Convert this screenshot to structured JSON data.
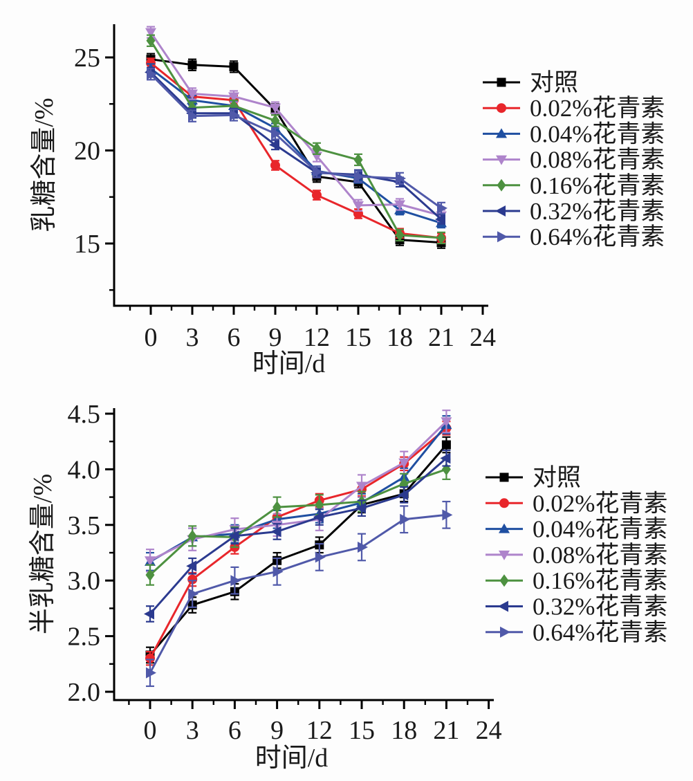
{
  "figure": {
    "panel_count": 2,
    "text_color": "#1a1a1a",
    "axis_color": "#000000"
  },
  "chart_data": [
    {
      "type": "line",
      "title": "",
      "xlabel": "时间/d",
      "ylabel": "乳糖含量/%",
      "x": [
        0,
        3,
        6,
        9,
        12,
        15,
        18,
        21
      ],
      "xlim": [
        -2.65,
        24.4
      ],
      "ylim": [
        11.7,
        26.8
      ],
      "xticks": [
        0,
        3,
        6,
        9,
        12,
        15,
        18,
        21,
        24
      ],
      "xtick_labels": [
        "0",
        "3",
        "6",
        "9",
        "12",
        "15",
        "18",
        "21",
        "24"
      ],
      "xminorticks": [
        -1.5,
        1.5,
        4.5,
        7.5,
        10.5,
        13.5,
        16.5,
        19.5,
        22.5
      ],
      "yticks": [
        15,
        20,
        25
      ],
      "ytick_labels": [
        "15",
        "20",
        "25"
      ],
      "yminorticks": [
        12.5,
        17.5,
        22.5
      ],
      "grid": false,
      "legend_position": "right",
      "series": [
        {
          "name": "对照",
          "marker": "square",
          "color": "#000000",
          "error": 0.3,
          "values": [
            24.9,
            24.6,
            24.5,
            22.2,
            18.6,
            18.3,
            15.2,
            15.05
          ]
        },
        {
          "name": "0.02%花青素",
          "marker": "circle",
          "color": "#e8262b",
          "error": 0.25,
          "values": [
            24.7,
            22.9,
            22.7,
            19.2,
            17.6,
            16.6,
            15.55,
            15.3
          ]
        },
        {
          "name": "0.04%花青素",
          "marker": "triangle-up",
          "color": "#1f4fa1",
          "error": 0.25,
          "values": [
            24.4,
            22.7,
            22.4,
            21.2,
            18.9,
            18.5,
            16.8,
            16.1
          ]
        },
        {
          "name": "0.08%花青素",
          "marker": "triangle-down",
          "color": "#ae84cb",
          "error": 0.3,
          "values": [
            26.35,
            23.05,
            22.9,
            22.3,
            19.7,
            17.05,
            17.1,
            16.5
          ]
        },
        {
          "name": "0.16%花青素",
          "marker": "diamond",
          "color": "#4d9140",
          "error": 0.3,
          "values": [
            25.9,
            22.3,
            22.4,
            21.6,
            20.1,
            19.5,
            15.45,
            15.3
          ]
        },
        {
          "name": "0.32%花青素",
          "marker": "triangle-left",
          "color": "#2b3a8f",
          "error": 0.25,
          "values": [
            24.2,
            22.0,
            22.0,
            20.3,
            18.8,
            18.7,
            18.3,
            16.3
          ]
        },
        {
          "name": "0.64%花青素",
          "marker": "triangle-right",
          "color": "#5059a9",
          "error": 0.3,
          "values": [
            24.1,
            21.85,
            21.9,
            20.9,
            18.85,
            18.6,
            18.5,
            16.9
          ]
        }
      ]
    },
    {
      "type": "line",
      "title": "",
      "xlabel": "时间/d",
      "ylabel": "半乳糖含量/%",
      "x": [
        0,
        3,
        6,
        9,
        12,
        15,
        18,
        21
      ],
      "xlim": [
        -2.55,
        24.4
      ],
      "ylim": [
        1.93,
        4.55
      ],
      "xticks": [
        0,
        3,
        6,
        9,
        12,
        15,
        18,
        21,
        24
      ],
      "xtick_labels": [
        "0",
        "3",
        "6",
        "9",
        "12",
        "15",
        "18",
        "21",
        "24"
      ],
      "xminorticks": [
        -1.5,
        1.5,
        4.5,
        7.5,
        10.5,
        13.5,
        16.5,
        19.5,
        22.5
      ],
      "yticks": [
        2.0,
        2.5,
        3.0,
        3.5,
        4.0,
        4.5
      ],
      "ytick_labels": [
        "2.0",
        "2.5",
        "3.0",
        "3.5",
        "4.0",
        "4.5"
      ],
      "yminorticks": [
        2.25,
        2.75,
        3.25,
        3.75,
        4.25
      ],
      "grid": false,
      "legend_position": "right",
      "series": [
        {
          "name": "对照",
          "marker": "square",
          "color": "#000000",
          "error": 0.07,
          "values": [
            2.33,
            2.78,
            2.9,
            3.18,
            3.32,
            3.68,
            3.78,
            4.22
          ]
        },
        {
          "name": "0.02%花青素",
          "marker": "circle",
          "color": "#e8262b",
          "error": 0.06,
          "values": [
            2.3,
            3.01,
            3.3,
            3.57,
            3.72,
            3.82,
            4.05,
            4.37
          ]
        },
        {
          "name": "0.04%花青素",
          "marker": "triangle-up",
          "color": "#1f4fa1",
          "error": 0.08,
          "values": [
            3.17,
            3.39,
            3.42,
            3.55,
            3.6,
            3.7,
            3.93,
            4.4
          ]
        },
        {
          "name": "0.08%花青素",
          "marker": "triangle-down",
          "color": "#ae84cb",
          "error": 0.1,
          "values": [
            3.18,
            3.37,
            3.46,
            3.5,
            3.55,
            3.85,
            4.06,
            4.43
          ]
        },
        {
          "name": "0.16%花青素",
          "marker": "diamond",
          "color": "#4d9140",
          "error": 0.09,
          "values": [
            3.05,
            3.4,
            3.39,
            3.66,
            3.68,
            3.71,
            3.87,
            4.0
          ]
        },
        {
          "name": "0.32%花青素",
          "marker": "triangle-left",
          "color": "#2b3a8f",
          "error": 0.07,
          "values": [
            2.7,
            3.13,
            3.4,
            3.44,
            3.57,
            3.65,
            3.77,
            4.1
          ]
        },
        {
          "name": "0.64%花青素",
          "marker": "triangle-right",
          "color": "#5059a9",
          "error": 0.12,
          "values": [
            2.17,
            2.88,
            3.0,
            3.08,
            3.21,
            3.3,
            3.55,
            3.59
          ]
        }
      ]
    }
  ]
}
